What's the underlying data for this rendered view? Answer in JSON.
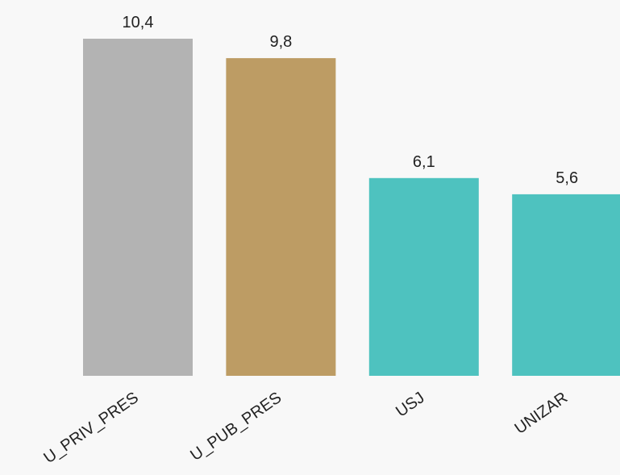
{
  "chart_data": {
    "type": "bar",
    "categories": [
      "U_PRIV_PRES",
      "U_PUB_PRES",
      "USJ",
      "UNIZAR"
    ],
    "values": [
      10.4,
      9.8,
      6.1,
      5.6
    ],
    "value_labels": [
      "10,4",
      "9,8",
      "6,1",
      "5,6"
    ],
    "colors": [
      "#b3b3b3",
      "#bd9c64",
      "#4ec2bf",
      "#4ec2bf"
    ],
    "title": "",
    "xlabel": "",
    "ylabel": "",
    "ylim": [
      0,
      10.4
    ],
    "grid": false,
    "legend": "none",
    "x_tick_rotation": -35
  }
}
